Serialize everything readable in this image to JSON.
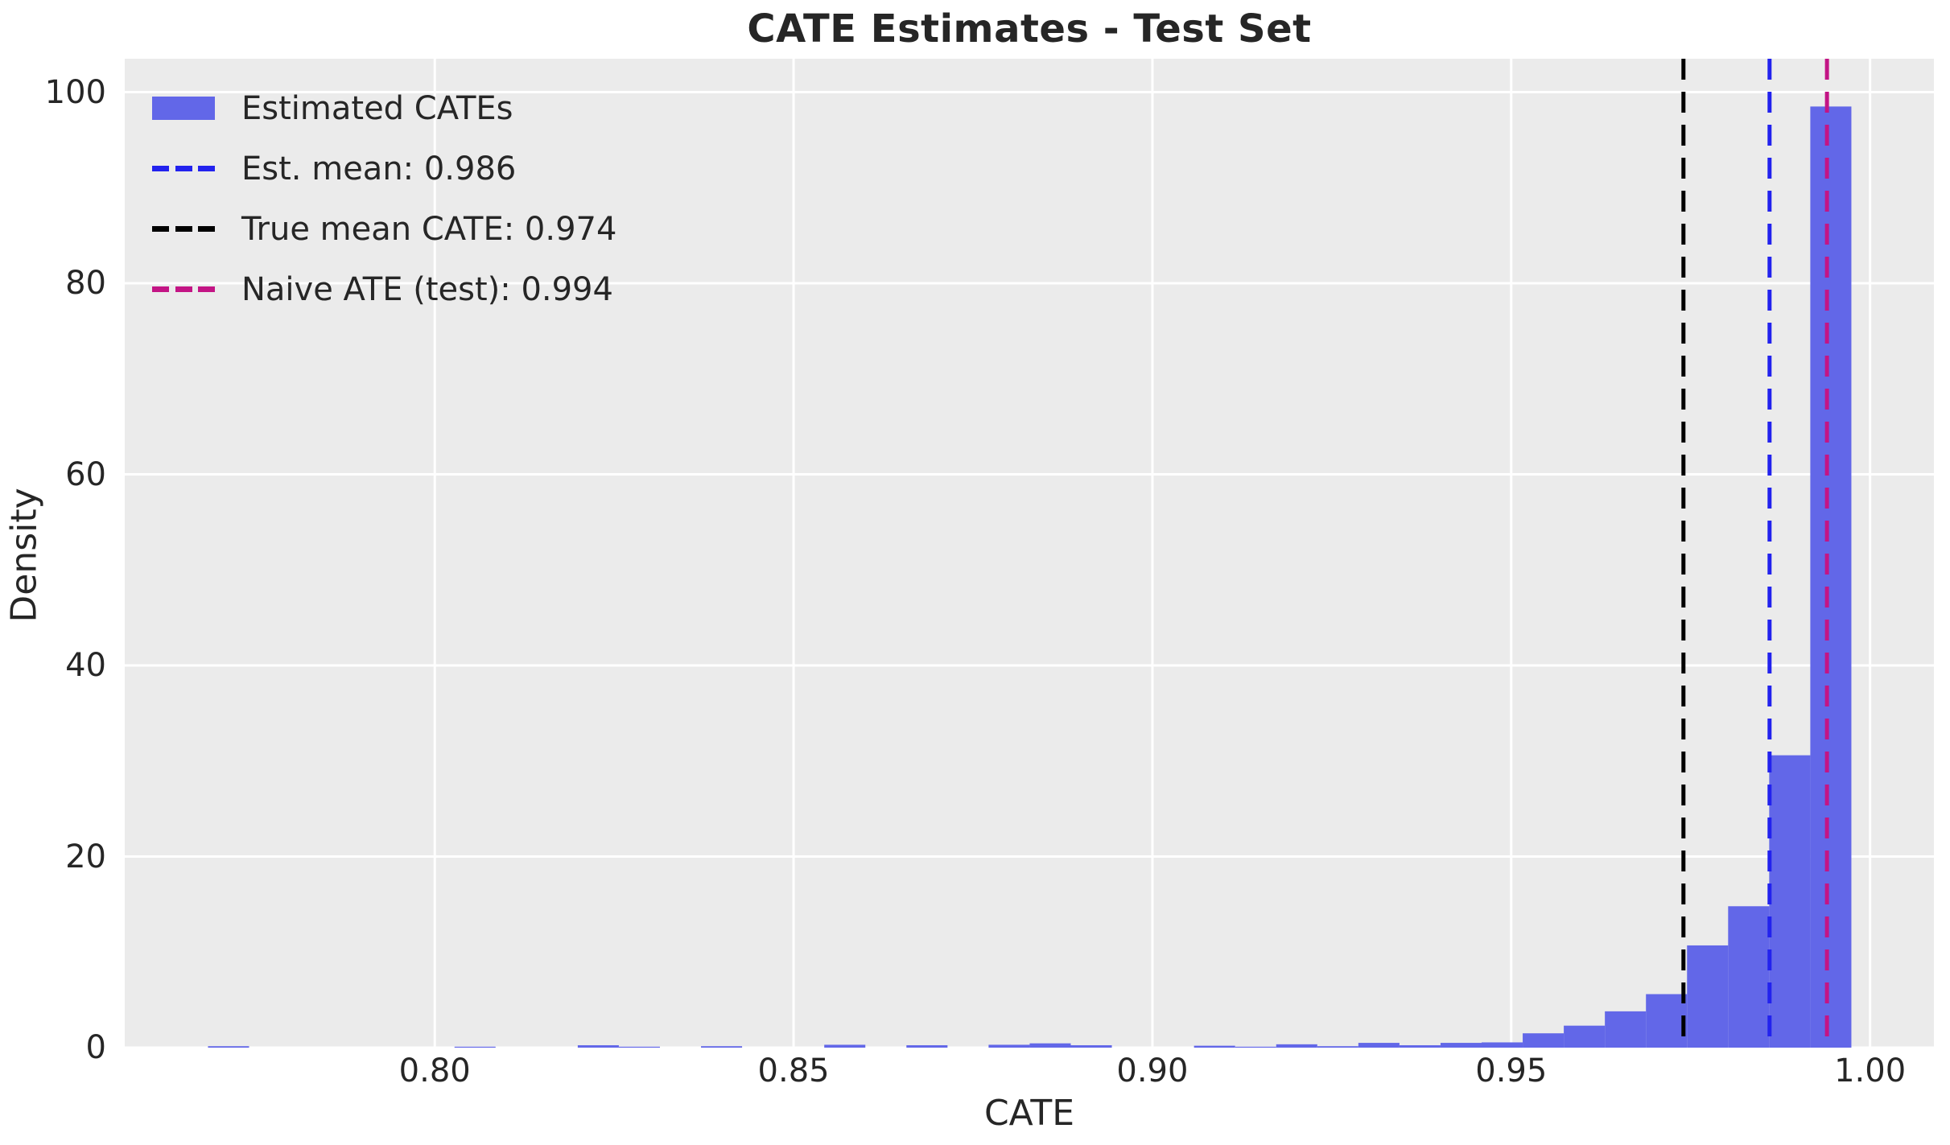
{
  "figure": {
    "background": "#ffffff",
    "axes_background": "#ebebeb",
    "grid_color": "#ffffff",
    "text_color": "#262626"
  },
  "chart_data": {
    "type": "bar",
    "subtype": "histogram",
    "title": "CATE Estimates - Test Set",
    "xlabel": "CATE",
    "ylabel": "Density",
    "xlim": [
      0.7568,
      1.0089
    ],
    "ylim": [
      0,
      103.5
    ],
    "grid": true,
    "legend_position": "upper-left",
    "xticks": {
      "values": [
        0.8,
        0.85,
        0.9,
        0.95,
        1.0
      ],
      "labels": [
        "0.80",
        "0.85",
        "0.90",
        "0.95",
        "1.00"
      ]
    },
    "yticks": {
      "values": [
        0,
        20,
        40,
        60,
        80,
        100
      ],
      "labels": [
        "0",
        "20",
        "40",
        "60",
        "80",
        "100"
      ]
    },
    "bars": {
      "color": "#6267e8",
      "bin_start": 0.7684,
      "bin_width": 0.005725,
      "densities": [
        0.15,
        0,
        0,
        0,
        0,
        0,
        0.1,
        0,
        0,
        0.25,
        0.1,
        0,
        0.15,
        0,
        0,
        0.3,
        0,
        0.25,
        0,
        0.3,
        0.45,
        0.25,
        0,
        0,
        0.2,
        0.1,
        0.35,
        0.15,
        0.5,
        0.25,
        0.5,
        0.55,
        1.5,
        2.3,
        3.8,
        5.6,
        10.7,
        14.8,
        30.6,
        98.5
      ]
    },
    "vlines": [
      {
        "name": "est-mean",
        "value": 0.986,
        "color": "#2222ee",
        "label": "Est. mean: 0.986"
      },
      {
        "name": "true-mean",
        "value": 0.974,
        "color": "#000000",
        "label": "True mean CATE: 0.974"
      },
      {
        "name": "naive-ate",
        "value": 0.994,
        "color": "#c31585",
        "label": "Naive ATE (test): 0.994"
      }
    ],
    "legend": {
      "items": [
        {
          "marker": "patch",
          "color": "#6267e8",
          "label": "Estimated CATEs"
        },
        {
          "marker": "dash",
          "color": "#2222ee",
          "label": "Est. mean: 0.986"
        },
        {
          "marker": "dash",
          "color": "#000000",
          "label": "True mean CATE: 0.974"
        },
        {
          "marker": "dash",
          "color": "#c31585",
          "label": "Naive ATE (test): 0.994"
        }
      ]
    }
  }
}
